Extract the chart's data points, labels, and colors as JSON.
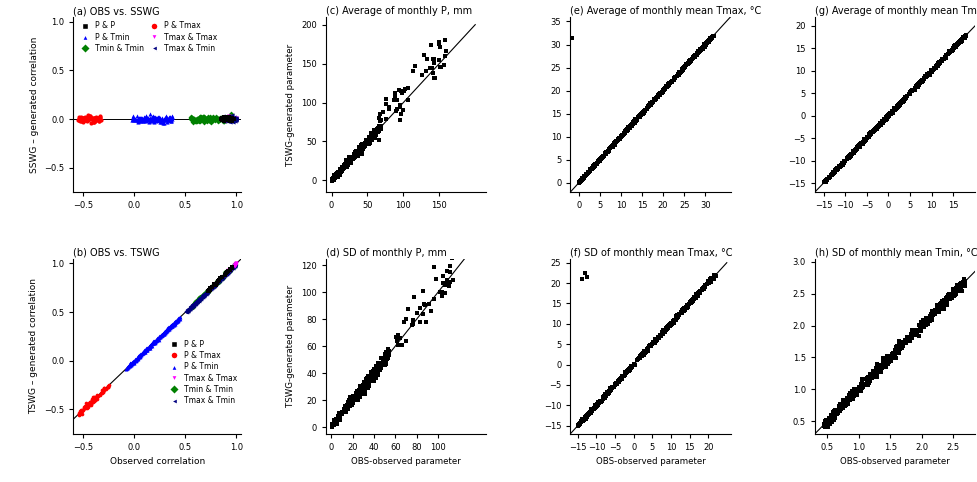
{
  "panels": {
    "a": {
      "title": "(a) OBS vs. SSWG",
      "ylabel": "SSWG – generated correlation",
      "xlim": [
        -0.6,
        1.05
      ],
      "ylim": [
        -0.75,
        1.05
      ],
      "xticks": [
        -0.5,
        0.0,
        0.5,
        1.0
      ],
      "yticks": [
        -0.5,
        0.0,
        0.5,
        1.0
      ]
    },
    "b": {
      "title": "(b) OBS vs. TSWG",
      "xlabel": "Observed correlation",
      "ylabel": "TSWG – generated correlation",
      "xlim": [
        -0.6,
        1.05
      ],
      "ylim": [
        -0.75,
        1.05
      ],
      "xticks": [
        -0.5,
        0.0,
        0.5,
        1.0
      ],
      "yticks": [
        -0.5,
        0.0,
        0.5,
        1.0
      ]
    },
    "c": {
      "title": "(c) Average of monthly P, mm",
      "ylabel": "TSWG-generated parameter",
      "xlim": [
        -8,
        215
      ],
      "ylim": [
        -15,
        210
      ],
      "xticks": [
        0,
        50,
        100,
        150
      ],
      "yticks": [
        0,
        50,
        100,
        150,
        200
      ]
    },
    "d": {
      "title": "(d) SD of monthly P, mm",
      "xlabel": "OBS-observed parameter",
      "ylabel": "TSWG-generated parameter",
      "xlim": [
        -5,
        145
      ],
      "ylim": [
        -5,
        125
      ],
      "xticks": [
        0,
        20,
        40,
        60,
        80,
        100
      ],
      "yticks": [
        0,
        20,
        40,
        60,
        80,
        100,
        120
      ]
    },
    "e": {
      "title": "(e) Average of monthly mean Tmax, °C",
      "xlim": [
        -2,
        36
      ],
      "ylim": [
        -2,
        36
      ],
      "xticks": [
        0,
        5,
        10,
        15,
        20,
        25,
        30
      ],
      "yticks": [
        0,
        5,
        10,
        15,
        20,
        25,
        30,
        35
      ]
    },
    "f": {
      "title": "(f) SD of monthly mean Tmax, °C",
      "xlabel": "OBS-observed parameter",
      "xlim": [
        -17,
        26
      ],
      "ylim": [
        -17,
        26
      ],
      "xticks": [
        -15,
        -10,
        -5,
        0,
        5,
        10,
        15,
        20
      ],
      "yticks": [
        -15,
        -10,
        -5,
        0,
        5,
        10,
        15,
        20,
        25
      ]
    },
    "g": {
      "title": "(g) Average of monthly mean Tmin",
      "xlim": [
        -17,
        20
      ],
      "ylim": [
        -17,
        22
      ],
      "xticks": [
        -15,
        -10,
        -5,
        0,
        5,
        10,
        15
      ],
      "yticks": [
        -15,
        -10,
        -5,
        0,
        5,
        10,
        15,
        20
      ]
    },
    "h": {
      "title": "(h) SD of monthly mean Tmin, °C",
      "xlabel": "OBS-observed parameter",
      "xlim": [
        0.3,
        2.85
      ],
      "ylim": [
        0.3,
        3.05
      ],
      "xticks": [
        0.5,
        1.0,
        1.5,
        2.0,
        2.5
      ],
      "yticks": [
        0.5,
        1.0,
        1.5,
        2.0,
        2.5,
        3.0
      ]
    }
  },
  "figsize": [
    9.77,
    4.82
  ],
  "dpi": 100
}
